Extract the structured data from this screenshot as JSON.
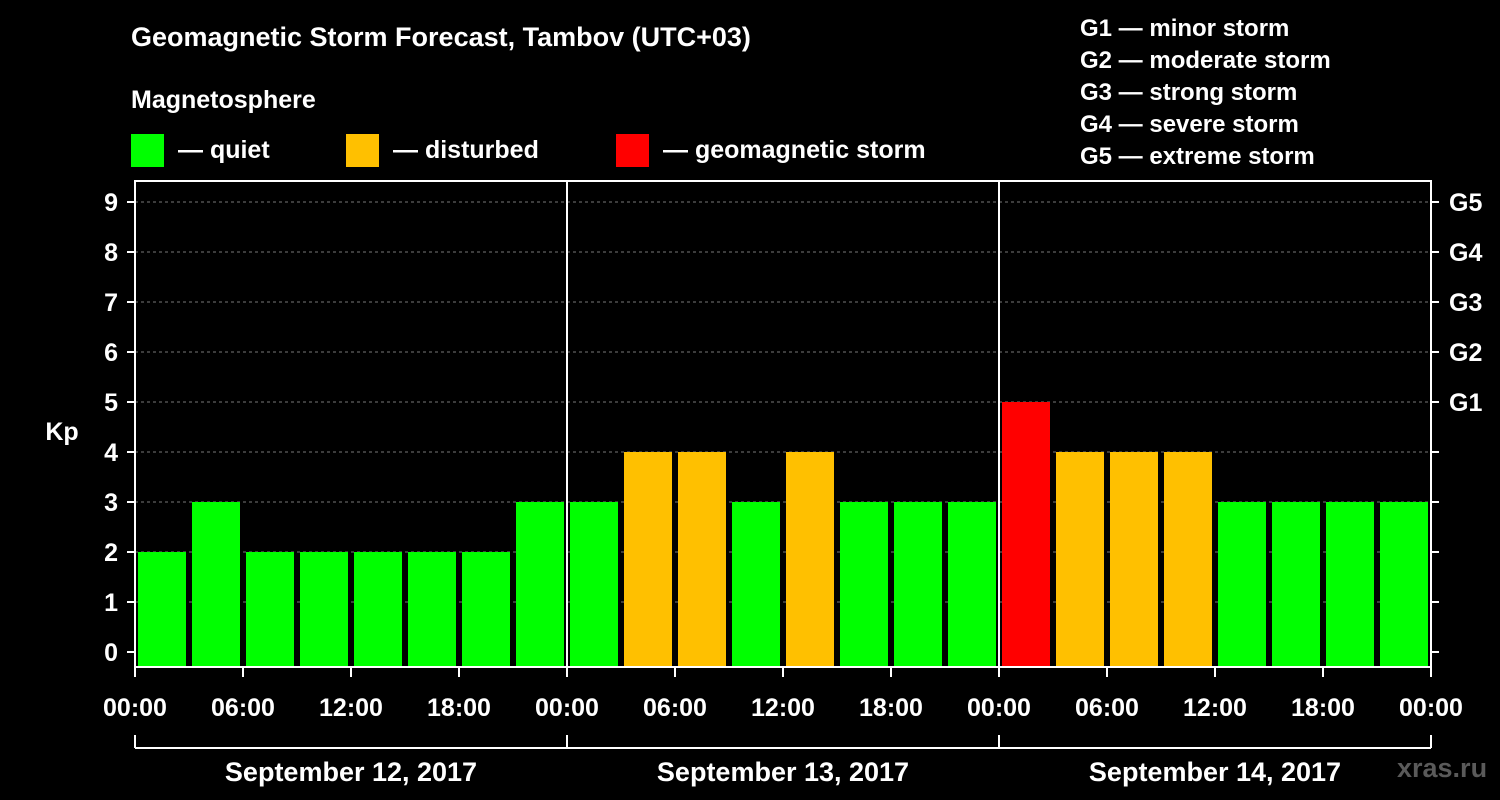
{
  "title": "Geomagnetic Storm Forecast, Tambov (UTC+03)",
  "subtitle": "Magnetosphere",
  "legend": [
    {
      "label": "— quiet",
      "color": "#00ff00"
    },
    {
      "label": "— disturbed",
      "color": "#ffc000"
    },
    {
      "label": "— geomagnetic storm",
      "color": "#ff0000"
    }
  ],
  "g_scale": [
    "G1 — minor storm",
    "G2 — moderate storm",
    "G3 — strong storm",
    "G4 — severe storm",
    "G5 — extreme storm"
  ],
  "watermark": "xras.ru",
  "chart_data": {
    "type": "bar",
    "title": "Geomagnetic Storm Forecast, Tambov (UTC+03)",
    "ylabel": "Kp",
    "ylim": [
      0,
      9
    ],
    "yticks": [
      "0",
      "1",
      "2",
      "3",
      "4",
      "5",
      "6",
      "7",
      "8",
      "9"
    ],
    "right_ticks": [
      {
        "kp": 5,
        "label": "G1"
      },
      {
        "kp": 6,
        "label": "G2"
      },
      {
        "kp": 7,
        "label": "G3"
      },
      {
        "kp": 8,
        "label": "G4"
      },
      {
        "kp": 9,
        "label": "G5"
      }
    ],
    "xtick_labels": [
      "00:00",
      "06:00",
      "12:00",
      "18:00",
      "00:00",
      "06:00",
      "12:00",
      "18:00",
      "00:00",
      "06:00",
      "12:00",
      "18:00",
      "00:00"
    ],
    "days": [
      "September 12, 2017",
      "September 13, 2017",
      "September 14, 2017"
    ],
    "interval_hours": 3,
    "values": [
      2,
      3,
      2,
      2,
      2,
      2,
      2,
      3,
      3,
      4,
      4,
      3,
      4,
      3,
      3,
      3,
      5,
      4,
      4,
      4,
      3,
      3,
      3,
      3
    ],
    "colors": {
      "quiet": "#00ff00",
      "disturbed": "#ffc000",
      "storm": "#ff0000"
    }
  }
}
